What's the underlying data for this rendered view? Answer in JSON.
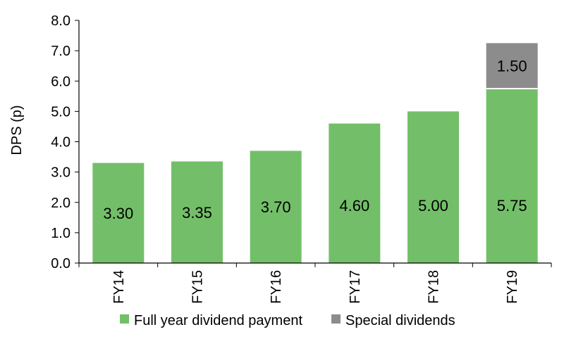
{
  "chart_data": {
    "type": "bar",
    "stacked": true,
    "categories": [
      "FY14",
      "FY15",
      "FY16",
      "FY17",
      "FY18",
      "FY19"
    ],
    "series": [
      {
        "name": "Full year dividend payment",
        "values": [
          3.3,
          3.35,
          3.7,
          4.6,
          5.0,
          5.75
        ],
        "color": "#73bf69",
        "labels": [
          "3.30",
          "3.35",
          "3.70",
          "4.60",
          "5.00",
          "5.75"
        ]
      },
      {
        "name": "Special dividends",
        "values": [
          0,
          0,
          0,
          0,
          0,
          1.5
        ],
        "color": "#8c8c8c",
        "labels": [
          "",
          "",
          "",
          "",
          "",
          "1.50"
        ]
      }
    ],
    "ylabel": "DPS (p)",
    "ylim": [
      0,
      8
    ],
    "yticks": [
      "0.0",
      "1.0",
      "2.0",
      "3.0",
      "4.0",
      "5.0",
      "6.0",
      "7.0",
      "8.0"
    ],
    "grid": false,
    "legend_position": "bottom"
  }
}
